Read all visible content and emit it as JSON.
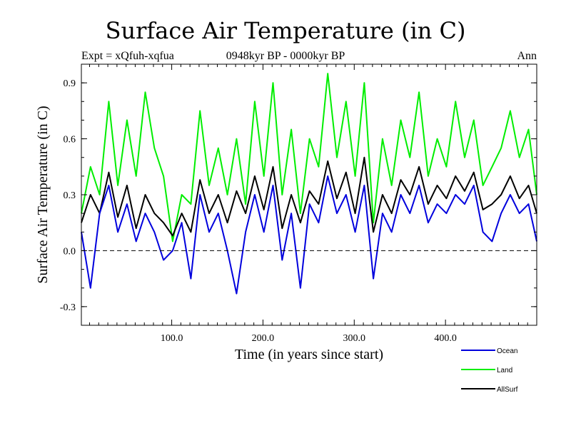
{
  "chart_data": {
    "type": "line",
    "title": "Surface Air Temperature (in C)",
    "subtitle": "0948kyr BP - 0000kyr BP",
    "experiment_label": "Expt = xQfuh-xqfua",
    "season_label": "Ann",
    "xlabel": "Time (in years since start)",
    "ylabel": "Surface Air Temperature (in C)",
    "xlim": [
      1,
      500
    ],
    "ylim": [
      -0.4,
      1.0
    ],
    "xticks": [
      100,
      200,
      300,
      400
    ],
    "xtick_labels": [
      "100.0",
      "200.0",
      "300.0",
      "400.0"
    ],
    "yticks": [
      -0.3,
      0.0,
      0.3,
      0.6,
      0.9
    ],
    "ytick_labels": [
      "-0.3",
      "0.0",
      "0.3",
      "0.6",
      "0.9"
    ],
    "reference_line": 0.0,
    "series": [
      {
        "name": "Land",
        "color": "#00ee00",
        "x": [
          1,
          11,
          21,
          31,
          41,
          51,
          61,
          71,
          81,
          91,
          101,
          111,
          121,
          131,
          141,
          151,
          161,
          171,
          181,
          191,
          201,
          211,
          221,
          231,
          241,
          251,
          261,
          271,
          281,
          291,
          301,
          311,
          321,
          331,
          341,
          351,
          361,
          371,
          381,
          391,
          401,
          411,
          421,
          431,
          441,
          451,
          461,
          471,
          481,
          491,
          500
        ],
        "values": [
          0.2,
          0.45,
          0.3,
          0.8,
          0.35,
          0.7,
          0.4,
          0.85,
          0.55,
          0.4,
          0.05,
          0.3,
          0.25,
          0.75,
          0.35,
          0.55,
          0.3,
          0.6,
          0.25,
          0.8,
          0.4,
          0.9,
          0.3,
          0.65,
          0.2,
          0.6,
          0.45,
          0.95,
          0.5,
          0.8,
          0.4,
          0.9,
          0.15,
          0.6,
          0.35,
          0.7,
          0.5,
          0.85,
          0.4,
          0.6,
          0.45,
          0.8,
          0.5,
          0.7,
          0.35,
          0.45,
          0.55,
          0.75,
          0.5,
          0.65,
          0.3
        ]
      },
      {
        "name": "AllSurf",
        "color": "#000000",
        "x": [
          1,
          11,
          21,
          31,
          41,
          51,
          61,
          71,
          81,
          91,
          101,
          111,
          121,
          131,
          141,
          151,
          161,
          171,
          181,
          191,
          201,
          211,
          221,
          231,
          241,
          251,
          261,
          271,
          281,
          291,
          301,
          311,
          321,
          331,
          341,
          351,
          361,
          371,
          381,
          391,
          401,
          411,
          421,
          431,
          441,
          451,
          461,
          471,
          481,
          491,
          500
        ],
        "values": [
          0.15,
          0.3,
          0.2,
          0.42,
          0.18,
          0.35,
          0.12,
          0.3,
          0.2,
          0.15,
          0.08,
          0.2,
          0.1,
          0.38,
          0.2,
          0.3,
          0.15,
          0.32,
          0.2,
          0.4,
          0.22,
          0.45,
          0.12,
          0.3,
          0.15,
          0.32,
          0.25,
          0.48,
          0.28,
          0.42,
          0.2,
          0.5,
          0.1,
          0.3,
          0.2,
          0.38,
          0.3,
          0.45,
          0.25,
          0.35,
          0.28,
          0.4,
          0.32,
          0.42,
          0.22,
          0.25,
          0.3,
          0.4,
          0.28,
          0.35,
          0.2
        ]
      },
      {
        "name": "Ocean",
        "color": "#0000dd",
        "x": [
          1,
          11,
          21,
          31,
          41,
          51,
          61,
          71,
          81,
          91,
          101,
          111,
          121,
          131,
          141,
          151,
          161,
          171,
          181,
          191,
          201,
          211,
          221,
          231,
          241,
          251,
          261,
          271,
          281,
          291,
          301,
          311,
          321,
          331,
          341,
          351,
          361,
          371,
          381,
          391,
          401,
          411,
          421,
          431,
          441,
          451,
          461,
          471,
          481,
          491,
          500
        ],
        "values": [
          0.1,
          -0.2,
          0.2,
          0.35,
          0.1,
          0.25,
          0.05,
          0.2,
          0.1,
          -0.05,
          0.0,
          0.15,
          -0.15,
          0.3,
          0.1,
          0.2,
          0.0,
          -0.23,
          0.1,
          0.3,
          0.1,
          0.35,
          -0.05,
          0.2,
          -0.2,
          0.25,
          0.15,
          0.4,
          0.2,
          0.3,
          0.1,
          0.35,
          -0.15,
          0.2,
          0.1,
          0.3,
          0.2,
          0.35,
          0.15,
          0.25,
          0.2,
          0.3,
          0.25,
          0.35,
          0.1,
          0.05,
          0.2,
          0.3,
          0.2,
          0.25,
          0.05
        ]
      }
    ],
    "legend": [
      {
        "label": "Ocean",
        "color": "#0000dd"
      },
      {
        "label": "Land",
        "color": "#00ee00"
      },
      {
        "label": "AllSurf",
        "color": "#000000"
      }
    ]
  }
}
